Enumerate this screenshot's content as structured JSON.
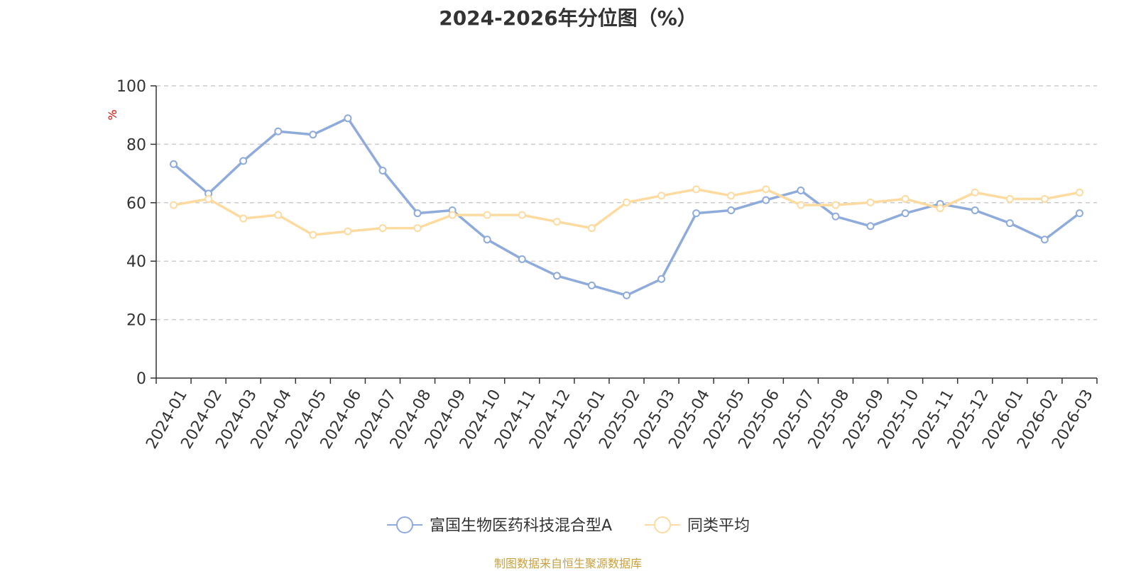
{
  "chart_data": {
    "type": "line",
    "title": "2024-2026年分位图（%）",
    "ylabel": "%",
    "xlabel": "",
    "ylim": [
      0,
      100
    ],
    "yticks": [
      0,
      20,
      40,
      60,
      80,
      100
    ],
    "grid": true,
    "legend_position": "bottom",
    "categories": [
      "2024-01",
      "2024-02",
      "2024-03",
      "2024-04",
      "2024-05",
      "2024-06",
      "2024-07",
      "2024-08",
      "2024-09",
      "2024-10",
      "2024-11",
      "2024-12",
      "2025-01",
      "2025-02",
      "2025-03",
      "2025-04",
      "2025-05",
      "2025-06",
      "2025-07",
      "2025-08",
      "2025-09",
      "2025-10",
      "2025-11",
      "2025-12",
      "2026-01",
      "2026-02",
      "2026-03"
    ],
    "series": [
      {
        "name": "富国生物医药科技混合型A",
        "color": "#8eabdb",
        "values": [
          73.2,
          63.1,
          74.3,
          84.4,
          83.3,
          88.9,
          71.0,
          56.4,
          57.4,
          47.4,
          40.7,
          35.0,
          31.7,
          28.3,
          33.9,
          56.4,
          57.4,
          60.9,
          64.2,
          55.3,
          52.0,
          56.4,
          59.6,
          57.4,
          53.0,
          47.4,
          56.4
        ]
      },
      {
        "name": "同类平均",
        "color": "#fddba0",
        "values": [
          59.2,
          61.3,
          54.6,
          55.8,
          49.0,
          50.2,
          51.3,
          51.3,
          55.8,
          55.8,
          55.8,
          53.5,
          51.3,
          60.1,
          62.4,
          64.6,
          62.4,
          64.6,
          59.2,
          59.2,
          60.1,
          61.3,
          58.1,
          63.5,
          61.3,
          61.3,
          63.5
        ]
      }
    ]
  },
  "source_note": "制图数据来自恒生聚源数据库"
}
